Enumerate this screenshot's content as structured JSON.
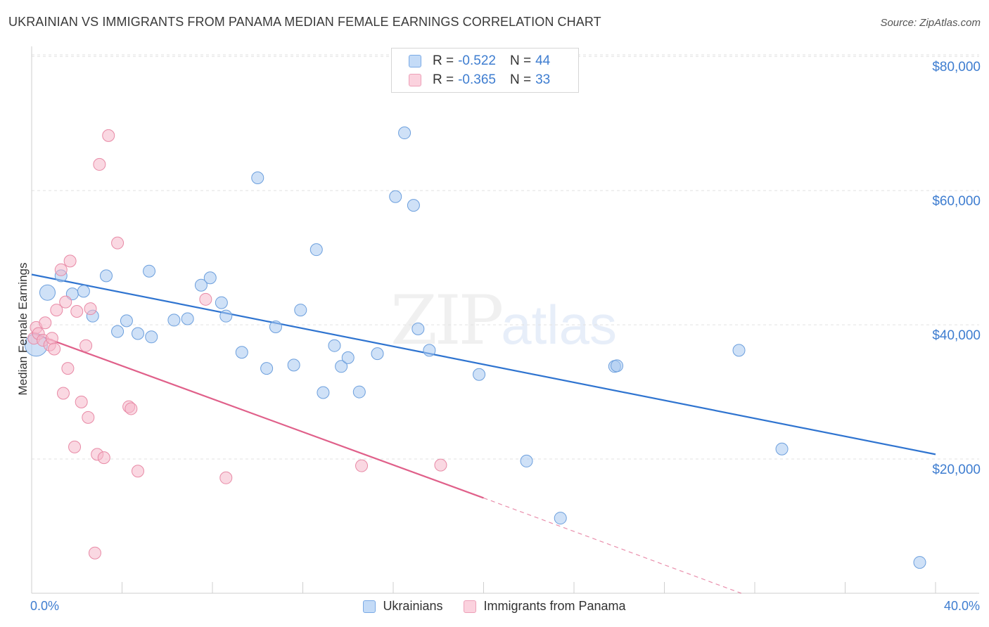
{
  "title": "UKRAINIAN VS IMMIGRANTS FROM PANAMA MEDIAN FEMALE EARNINGS CORRELATION CHART",
  "source": "Source: ZipAtlas.com",
  "watermark": {
    "zip": "ZIP",
    "atlas": "atlas"
  },
  "legend_top": {
    "rows": [
      {
        "r_label": "R = ",
        "r_value": "-0.522",
        "n_label": "N = ",
        "n_value": "44",
        "color": "#a8c8f0"
      },
      {
        "r_label": "R = ",
        "r_value": "-0.365",
        "n_label": "N = ",
        "n_value": "33",
        "color": "#f6b8cb"
      }
    ]
  },
  "legend_bottom": [
    {
      "label": "Ukrainians",
      "color": "#a8c8f0"
    },
    {
      "label": "Immigrants from Panama",
      "color": "#f6b8cb"
    }
  ],
  "chart_data": {
    "type": "scatter",
    "title": "UKRAINIAN VS IMMIGRANTS FROM PANAMA MEDIAN FEMALE EARNINGS CORRELATION CHART",
    "xlabel": "",
    "ylabel": "Median Female Earnings",
    "xlim": [
      0,
      40
    ],
    "ylim": [
      0,
      80000
    ],
    "x_tick_labels": [
      "0.0%",
      "40.0%"
    ],
    "y_ticks": [
      20000,
      40000,
      60000,
      80000
    ],
    "y_tick_labels": [
      "$20,000",
      "$40,000",
      "$60,000",
      "$80,000"
    ],
    "grid": true,
    "series": [
      {
        "name": "Ukrainians",
        "color": "#a8c8f0",
        "stroke": "#6c9fdd",
        "trend_color": "#2f74d0",
        "trend": {
          "x0": 0,
          "y0": 47500,
          "x1": 40,
          "y1": 20700
        },
        "points": [
          [
            0.2,
            37000
          ],
          [
            0.7,
            44800
          ],
          [
            1.3,
            47300
          ],
          [
            1.8,
            44600
          ],
          [
            2.3,
            45000
          ],
          [
            2.7,
            41300
          ],
          [
            3.3,
            47300
          ],
          [
            3.8,
            39000
          ],
          [
            4.2,
            40600
          ],
          [
            4.7,
            38700
          ],
          [
            5.3,
            38200
          ],
          [
            5.2,
            48000
          ],
          [
            6.3,
            40700
          ],
          [
            6.9,
            40900
          ],
          [
            7.5,
            45900
          ],
          [
            7.9,
            47000
          ],
          [
            8.4,
            43300
          ],
          [
            8.6,
            41300
          ],
          [
            9.3,
            35900
          ],
          [
            10.0,
            61900
          ],
          [
            10.4,
            33500
          ],
          [
            10.8,
            39700
          ],
          [
            11.6,
            34000
          ],
          [
            11.9,
            42200
          ],
          [
            12.6,
            51200
          ],
          [
            12.9,
            29900
          ],
          [
            13.4,
            36900
          ],
          [
            13.7,
            33800
          ],
          [
            14.0,
            35100
          ],
          [
            14.5,
            30000
          ],
          [
            15.3,
            35700
          ],
          [
            16.1,
            59100
          ],
          [
            16.5,
            68600
          ],
          [
            16.9,
            57800
          ],
          [
            17.1,
            39400
          ],
          [
            17.6,
            36200
          ],
          [
            19.8,
            32600
          ],
          [
            21.9,
            19700
          ],
          [
            23.4,
            11200
          ],
          [
            25.8,
            33800
          ],
          [
            25.9,
            33900
          ],
          [
            31.3,
            36200
          ],
          [
            33.2,
            21500
          ],
          [
            39.3,
            4600
          ]
        ]
      },
      {
        "name": "Immigrants from Panama",
        "color": "#f6b8cb",
        "stroke": "#e88aa6",
        "trend_color": "#e0608a",
        "trend": {
          "x0": 0,
          "y0": 38800,
          "x1": 20,
          "y1": 14200
        },
        "trend_dashed_to": {
          "x": 31.4,
          "y": 0
        },
        "points": [
          [
            0.1,
            38000
          ],
          [
            0.2,
            39600
          ],
          [
            0.3,
            38700
          ],
          [
            0.5,
            37700
          ],
          [
            0.6,
            40300
          ],
          [
            0.8,
            37000
          ],
          [
            0.9,
            38000
          ],
          [
            1.0,
            36400
          ],
          [
            1.1,
            42200
          ],
          [
            1.3,
            48200
          ],
          [
            1.4,
            29800
          ],
          [
            1.5,
            43400
          ],
          [
            1.6,
            33500
          ],
          [
            1.7,
            49500
          ],
          [
            1.9,
            21800
          ],
          [
            2.0,
            42000
          ],
          [
            2.2,
            28500
          ],
          [
            2.4,
            36900
          ],
          [
            2.5,
            26200
          ],
          [
            2.6,
            42400
          ],
          [
            2.8,
            6000
          ],
          [
            2.9,
            20700
          ],
          [
            3.0,
            63900
          ],
          [
            3.2,
            20200
          ],
          [
            3.4,
            68200
          ],
          [
            3.8,
            52200
          ],
          [
            4.3,
            27800
          ],
          [
            4.4,
            27500
          ],
          [
            4.7,
            18200
          ],
          [
            7.7,
            43800
          ],
          [
            8.6,
            17200
          ],
          [
            14.6,
            19000
          ],
          [
            18.1,
            19100
          ]
        ]
      }
    ]
  }
}
